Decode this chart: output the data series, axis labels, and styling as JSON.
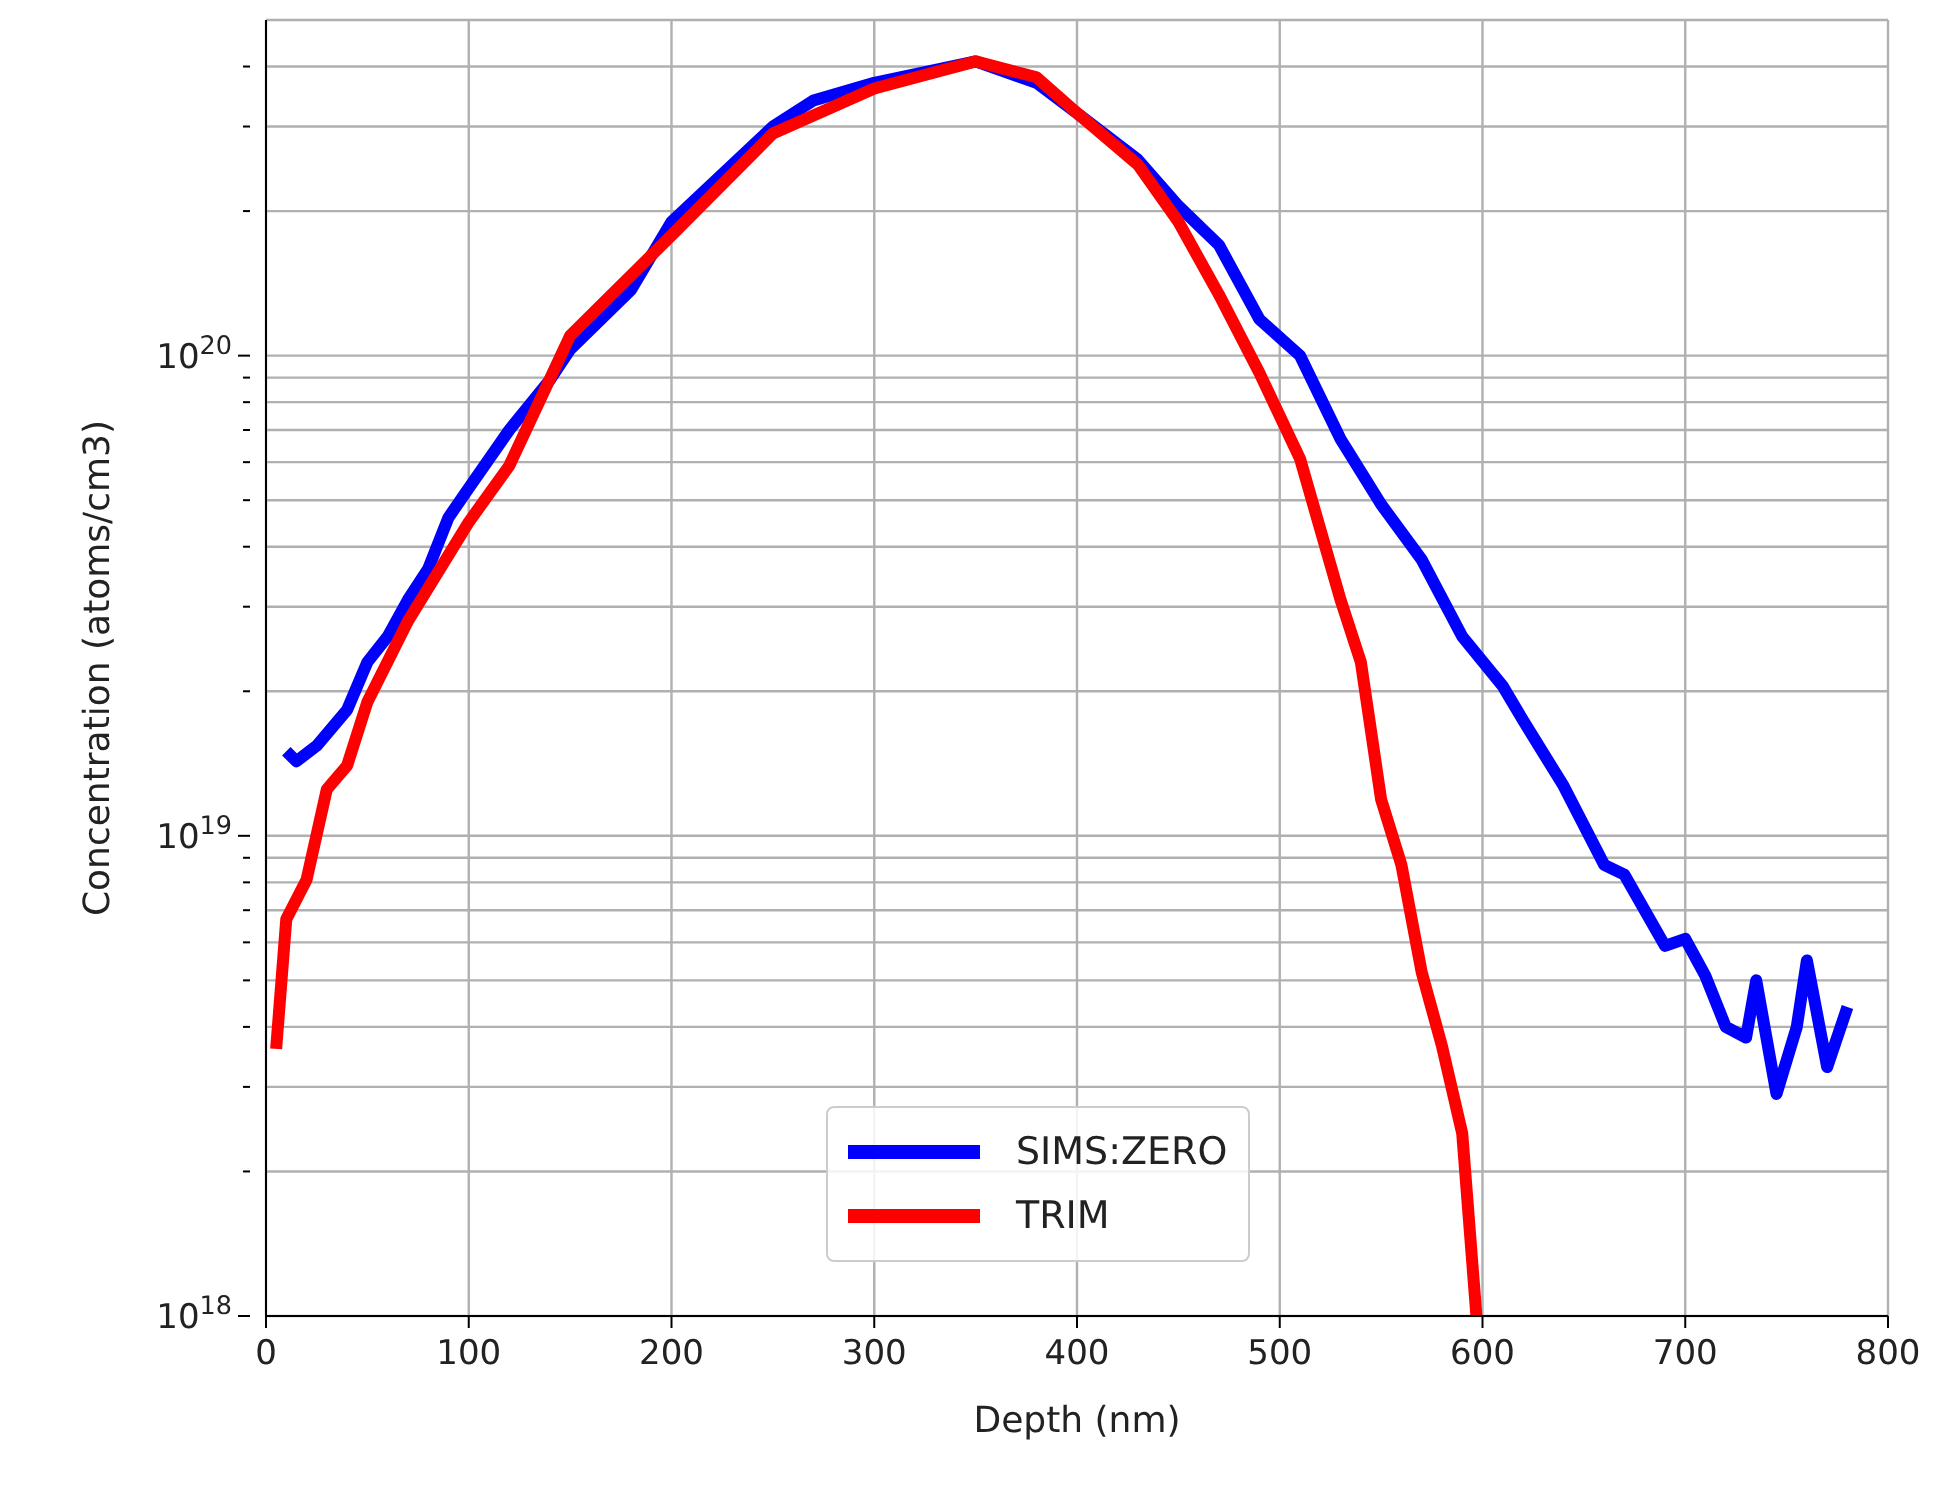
{
  "chart_data": {
    "type": "line",
    "xlabel": "Depth (nm)",
    "ylabel": "Concentration (atoms/cm3)",
    "log": "y",
    "xlim": [
      0,
      800
    ],
    "xticks": [
      0,
      100,
      200,
      300,
      400,
      500,
      600,
      700,
      800
    ],
    "ylim": [
      1e+18,
      5e+20
    ],
    "yticks": [
      {
        "value": 1e+18,
        "label": "10$^{18}$"
      },
      {
        "value": 2e+18,
        "label": null
      },
      {
        "value": 3e+18,
        "label": null
      },
      {
        "value": 4e+18,
        "label": null
      },
      {
        "value": 5e+18,
        "label": null
      },
      {
        "value": 6e+18,
        "label": null
      },
      {
        "value": 7e+18,
        "label": null
      },
      {
        "value": 8e+18,
        "label": null
      },
      {
        "value": 9e+18,
        "label": null
      },
      {
        "value": 1e+19,
        "label": "10$^{19}$"
      },
      {
        "value": 2e+19,
        "label": null
      },
      {
        "value": 3e+19,
        "label": null
      },
      {
        "value": 4e+19,
        "label": null
      },
      {
        "value": 5e+19,
        "label": null
      },
      {
        "value": 6e+19,
        "label": null
      },
      {
        "value": 7e+19,
        "label": null
      },
      {
        "value": 8e+19,
        "label": null
      },
      {
        "value": 9e+19,
        "label": null
      },
      {
        "value": 1e+20,
        "label": "10$^{20}$"
      },
      {
        "value": 2e+20,
        "label": null
      },
      {
        "value": 3e+20,
        "label": null
      },
      {
        "value": 4e+20,
        "label": null
      }
    ],
    "grid": true,
    "legend": "bottom",
    "line_style": "solid",
    "marker": "none",
    "series": [
      {
        "name": "SIMS:ZERO",
        "color": "#0000ff",
        "x": [
          10,
          15,
          25,
          40,
          50,
          60,
          70,
          80,
          90,
          100,
          120,
          140,
          150,
          180,
          200,
          250,
          270,
          300,
          350,
          380,
          400,
          430,
          450,
          470,
          490,
          510,
          530,
          550,
          570,
          590,
          610,
          620,
          640,
          660,
          670,
          690,
          700,
          710,
          720,
          730,
          735,
          745,
          755,
          760,
          770,
          780
        ],
        "values": [
          1.5e+19,
          1.43e+19,
          1.54e+19,
          1.83e+19,
          2.3e+19,
          2.6e+19,
          3.1e+19,
          3.6e+19,
          4.6e+19,
          5.3e+19,
          7e+19,
          8.9e+19,
          1.03e+20,
          1.37e+20,
          1.9e+20,
          3e+20,
          3.4e+20,
          3.7e+20,
          4.1e+20,
          3.7e+20,
          3.2e+20,
          2.56e+20,
          2.05e+20,
          1.7e+20,
          1.19e+20,
          1e+20,
          6.7e+19,
          4.9e+19,
          3.76e+19,
          2.6e+19,
          2.05e+19,
          1.74e+19,
          1.27e+19,
          8.7e+18,
          8.3e+18,
          5.9e+18,
          6.1e+18,
          5.1e+18,
          4e+18,
          3.8e+18,
          5e+18,
          2.9e+18,
          4e+18,
          5.5e+18,
          3.3e+18,
          4.4e+18
        ]
      },
      {
        "name": "TRIM",
        "color": "#ff0000",
        "x": [
          5,
          10,
          20,
          30,
          40,
          50,
          70,
          100,
          120,
          150,
          200,
          250,
          300,
          350,
          380,
          400,
          430,
          450,
          470,
          490,
          510,
          530,
          540,
          550,
          560,
          570,
          580,
          590,
          597
        ],
        "values": [
          3.6e+18,
          6.7e+18,
          8.1e+18,
          1.25e+19,
          1.4e+19,
          1.9e+19,
          2.8e+19,
          4.5e+19,
          5.9e+19,
          1.1e+20,
          1.78e+20,
          2.9e+20,
          3.6e+20,
          4.1e+20,
          3.8e+20,
          3.2e+20,
          2.5e+20,
          1.9e+20,
          1.34e+20,
          9.2e+19,
          6.1e+19,
          3.1e+19,
          2.3e+19,
          1.19e+19,
          8.7e+18,
          5.2e+18,
          3.65e+18,
          2.4e+18,
          1e+18
        ]
      }
    ]
  }
}
